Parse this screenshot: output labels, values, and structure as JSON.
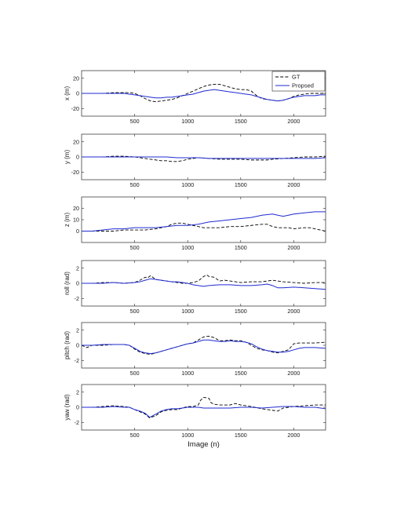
{
  "figure": {
    "background": "#ffffff"
  },
  "chart_data": [
    {
      "type": "line",
      "ylabel": "x (m)",
      "xlabel": "",
      "xlim": [
        0,
        2300
      ],
      "ylim": [
        -30,
        30
      ],
      "xticks": [
        500,
        1000,
        1500,
        2000
      ],
      "yticks": [
        -20,
        0,
        20
      ],
      "grid": false,
      "legend": {
        "position": "top-right",
        "entries": [
          "GT",
          "Propsed"
        ]
      },
      "series": [
        {
          "name": "GT",
          "color": "#000000",
          "style": "dashed",
          "x": [
            0,
            100,
            200,
            300,
            400,
            450,
            500,
            550,
            600,
            650,
            700,
            750,
            800,
            850,
            900,
            950,
            1000,
            1050,
            1100,
            1150,
            1200,
            1250,
            1300,
            1350,
            1400,
            1450,
            1500,
            1550,
            1600,
            1650,
            1700,
            1750,
            1800,
            1850,
            1900,
            1950,
            2000,
            2050,
            2100,
            2150,
            2200,
            2250,
            2300
          ],
          "y": [
            0,
            0,
            0,
            1,
            1,
            1,
            0,
            -3,
            -7,
            -10,
            -11,
            -10,
            -9,
            -8,
            -6,
            -3,
            0,
            3,
            6,
            9,
            11,
            12,
            12,
            10,
            8,
            6,
            5,
            5,
            3,
            -3,
            -7,
            -8,
            -9,
            -10,
            -9,
            -7,
            -4,
            -2,
            -1,
            0,
            0,
            0,
            0
          ]
        },
        {
          "name": "Propsed",
          "color": "#1f2bd0",
          "style": "solid",
          "x": [
            0,
            100,
            200,
            300,
            400,
            450,
            500,
            550,
            600,
            650,
            700,
            750,
            800,
            850,
            900,
            950,
            1000,
            1050,
            1100,
            1150,
            1200,
            1250,
            1300,
            1350,
            1400,
            1450,
            1500,
            1550,
            1600,
            1650,
            1700,
            1750,
            1800,
            1850,
            1900,
            1950,
            2000,
            2050,
            2100,
            2150,
            2200,
            2250,
            2300
          ],
          "y": [
            0,
            0,
            0,
            0,
            0,
            -1,
            -2,
            -3,
            -4,
            -5,
            -6,
            -6,
            -5,
            -5,
            -4,
            -3,
            -2,
            -1,
            1,
            3,
            4,
            5,
            4,
            3,
            2,
            1,
            0,
            -1,
            -2,
            -4,
            -6,
            -8,
            -9,
            -10,
            -9,
            -7,
            -5,
            -4,
            -3,
            -3,
            -3,
            -2,
            -2
          ]
        }
      ]
    },
    {
      "type": "line",
      "ylabel": "y (m)",
      "xlabel": "",
      "xlim": [
        0,
        2300
      ],
      "ylim": [
        -30,
        30
      ],
      "xticks": [
        500,
        1000,
        1500,
        2000
      ],
      "yticks": [
        -20,
        0,
        20
      ],
      "grid": false,
      "series": [
        {
          "name": "GT",
          "color": "#000000",
          "style": "dashed",
          "x": [
            0,
            100,
            200,
            300,
            400,
            500,
            550,
            600,
            650,
            700,
            750,
            800,
            850,
            900,
            950,
            1000,
            1050,
            1100,
            1200,
            1300,
            1400,
            1500,
            1600,
            1650,
            1700,
            1750,
            1800,
            1900,
            2000,
            2100,
            2200,
            2300
          ],
          "y": [
            0,
            0,
            0,
            1,
            1,
            0,
            -1,
            -2,
            -3,
            -4,
            -5,
            -5,
            -6,
            -6,
            -5,
            -3,
            -2,
            -1,
            -2,
            -3,
            -3,
            -3,
            -4,
            -4,
            -4,
            -4,
            -3,
            -2,
            -1,
            0,
            0,
            1
          ]
        },
        {
          "name": "Propsed",
          "color": "#1f2bd0",
          "style": "solid",
          "x": [
            0,
            100,
            200,
            300,
            400,
            500,
            600,
            700,
            800,
            900,
            1000,
            1100,
            1200,
            1300,
            1400,
            1500,
            1600,
            1700,
            1800,
            1900,
            2000,
            2100,
            2200,
            2300
          ],
          "y": [
            0,
            0,
            0,
            0,
            0,
            0,
            0,
            0,
            0,
            -1,
            -1,
            -1,
            -2,
            -2,
            -2,
            -2,
            -2,
            -2,
            -2,
            -2,
            -2,
            -2,
            -2,
            -1
          ]
        }
      ]
    },
    {
      "type": "line",
      "ylabel": "z (m)",
      "xlabel": "",
      "xlim": [
        0,
        2300
      ],
      "ylim": [
        -10,
        30
      ],
      "xticks": [
        500,
        1000,
        1500,
        2000
      ],
      "yticks": [
        0,
        10,
        20
      ],
      "grid": false,
      "series": [
        {
          "name": "GT",
          "color": "#000000",
          "style": "dashed",
          "x": [
            0,
            100,
            200,
            300,
            400,
            500,
            600,
            700,
            750,
            800,
            850,
            900,
            950,
            1000,
            1050,
            1100,
            1150,
            1200,
            1300,
            1400,
            1500,
            1600,
            1700,
            1750,
            1800,
            1850,
            1900,
            1950,
            2000,
            2100,
            2150,
            2200,
            2250,
            2300
          ],
          "y": [
            0,
            0,
            0,
            0,
            1,
            1,
            1,
            2,
            3,
            4,
            6,
            7,
            7,
            6,
            5,
            4,
            3,
            3,
            3,
            4,
            4,
            5,
            6,
            6,
            4,
            3,
            3,
            3,
            2,
            3,
            3,
            2,
            1,
            0
          ]
        },
        {
          "name": "Propsed",
          "color": "#1f2bd0",
          "style": "solid",
          "x": [
            0,
            100,
            200,
            300,
            400,
            500,
            600,
            700,
            800,
            900,
            1000,
            1100,
            1200,
            1300,
            1400,
            1500,
            1600,
            1700,
            1800,
            1850,
            1900,
            1950,
            2000,
            2100,
            2200,
            2300
          ],
          "y": [
            0,
            0,
            1,
            2,
            2,
            3,
            3,
            3,
            4,
            5,
            5,
            6,
            8,
            9,
            10,
            11,
            12,
            14,
            15,
            14,
            13,
            14,
            15,
            16,
            17,
            17
          ]
        }
      ]
    },
    {
      "type": "line",
      "ylabel": "roll (rad)",
      "xlabel": "",
      "xlim": [
        0,
        2300
      ],
      "ylim": [
        -3,
        3
      ],
      "xticks": [
        500,
        1000,
        1500,
        2000
      ],
      "yticks": [
        -2,
        0,
        2
      ],
      "grid": false,
      "series": [
        {
          "name": "GT",
          "color": "#000000",
          "style": "dashed",
          "x": [
            0,
            100,
            200,
            300,
            400,
            500,
            550,
            600,
            620,
            650,
            680,
            700,
            750,
            800,
            850,
            900,
            950,
            1000,
            1050,
            1100,
            1150,
            1180,
            1200,
            1250,
            1300,
            1350,
            1400,
            1500,
            1600,
            1700,
            1750,
            1800,
            1900,
            2000,
            2100,
            2200,
            2300
          ],
          "y": [
            0,
            0,
            0.1,
            0.1,
            0,
            0.1,
            0.4,
            0.8,
            0.7,
            1.0,
            0.7,
            0.5,
            0.4,
            0.3,
            0.2,
            0.1,
            0,
            0,
            0.1,
            0.3,
            0.9,
            1.1,
            0.9,
            0.8,
            0.3,
            0.4,
            0.3,
            0.1,
            0.2,
            0.2,
            0.3,
            0.4,
            0.2,
            0.1,
            0,
            0.1,
            0.1
          ]
        },
        {
          "name": "Propsed",
          "color": "#1f2bd0",
          "style": "solid",
          "x": [
            0,
            100,
            200,
            300,
            400,
            500,
            550,
            600,
            650,
            700,
            750,
            800,
            850,
            900,
            950,
            1000,
            1050,
            1100,
            1150,
            1200,
            1300,
            1400,
            1500,
            1600,
            1700,
            1750,
            1800,
            1850,
            1900,
            2000,
            2100,
            2200,
            2300
          ],
          "y": [
            0,
            0,
            0,
            0.1,
            0,
            0.1,
            0.2,
            0.4,
            0.6,
            0.5,
            0.4,
            0.3,
            0.2,
            0.2,
            0.1,
            0,
            -0.2,
            -0.3,
            -0.4,
            -0.3,
            -0.2,
            -0.2,
            -0.3,
            -0.3,
            -0.2,
            -0.1,
            -0.3,
            -0.6,
            -0.6,
            -0.5,
            -0.6,
            -0.7,
            -0.8
          ]
        }
      ]
    },
    {
      "type": "line",
      "ylabel": "pitch (rad)",
      "xlabel": "",
      "xlim": [
        0,
        2300
      ],
      "ylim": [
        -3,
        3
      ],
      "xticks": [
        500,
        1000,
        1500,
        2000
      ],
      "yticks": [
        -2,
        0,
        2
      ],
      "grid": false,
      "series": [
        {
          "name": "GT",
          "color": "#000000",
          "style": "dashed",
          "x": [
            0,
            50,
            100,
            200,
            300,
            400,
            450,
            500,
            550,
            600,
            650,
            700,
            750,
            800,
            850,
            900,
            950,
            1000,
            1050,
            1100,
            1150,
            1200,
            1250,
            1300,
            1350,
            1400,
            1450,
            1500,
            1550,
            1600,
            1650,
            1700,
            1750,
            1800,
            1850,
            1900,
            1950,
            2000,
            2050,
            2100,
            2200,
            2300
          ],
          "y": [
            0,
            -0.3,
            0,
            0,
            0.1,
            0.1,
            0,
            -0.5,
            -0.9,
            -1.1,
            -1.2,
            -1.0,
            -0.8,
            -0.6,
            -0.4,
            -0.2,
            0,
            0.2,
            0.3,
            0.7,
            1.1,
            1.2,
            1.0,
            0.6,
            0.6,
            0.7,
            0.6,
            0.6,
            0.4,
            0,
            -0.4,
            -0.6,
            -0.7,
            -0.9,
            -1.0,
            -0.8,
            -0.6,
            0.2,
            0.3,
            0.3,
            0.3,
            0.4
          ]
        },
        {
          "name": "Propsed",
          "color": "#1f2bd0",
          "style": "solid",
          "x": [
            0,
            100,
            200,
            300,
            400,
            450,
            500,
            550,
            600,
            650,
            700,
            750,
            800,
            850,
            900,
            950,
            1000,
            1050,
            1100,
            1150,
            1200,
            1250,
            1300,
            1350,
            1400,
            1450,
            1500,
            1550,
            1600,
            1650,
            1700,
            1750,
            1800,
            1850,
            1900,
            1950,
            2000,
            2050,
            2100,
            2200,
            2300
          ],
          "y": [
            0,
            0,
            0.1,
            0.1,
            0.1,
            0,
            -0.4,
            -0.8,
            -1.0,
            -1.1,
            -1.0,
            -0.8,
            -0.6,
            -0.4,
            -0.2,
            0,
            0.2,
            0.3,
            0.5,
            0.7,
            0.7,
            0.6,
            0.5,
            0.5,
            0.6,
            0.5,
            0.5,
            0.4,
            0.2,
            -0.2,
            -0.5,
            -0.7,
            -0.8,
            -0.9,
            -0.9,
            -0.8,
            -0.6,
            -0.4,
            -0.3,
            -0.3,
            -0.4
          ]
        }
      ]
    },
    {
      "type": "line",
      "ylabel": "yaw (rad)",
      "xlabel": "Image (n)",
      "xlim": [
        0,
        2300
      ],
      "ylim": [
        -3,
        3
      ],
      "xticks": [
        500,
        1000,
        1500,
        2000
      ],
      "yticks": [
        -2,
        0,
        2
      ],
      "grid": false,
      "series": [
        {
          "name": "GT",
          "color": "#000000",
          "style": "dashed",
          "x": [
            0,
            100,
            200,
            300,
            400,
            450,
            500,
            550,
            600,
            640,
            660,
            700,
            750,
            800,
            850,
            900,
            950,
            1000,
            1050,
            1100,
            1120,
            1150,
            1200,
            1220,
            1250,
            1300,
            1400,
            1450,
            1500,
            1550,
            1600,
            1700,
            1800,
            1850,
            1900,
            1950,
            2000,
            2100,
            2200,
            2300
          ],
          "y": [
            0,
            0,
            0.1,
            0.2,
            0.1,
            0,
            -0.3,
            -0.6,
            -0.9,
            -1.4,
            -1.3,
            -1.1,
            -0.6,
            -0.4,
            -0.3,
            -0.3,
            -0.1,
            0.1,
            0.1,
            0.3,
            0.9,
            1.3,
            1.2,
            0.6,
            0.4,
            0.3,
            0.3,
            0.5,
            0.3,
            0.2,
            0.1,
            -0.2,
            -0.4,
            -0.5,
            -0.1,
            0,
            0.1,
            0.2,
            0.3,
            0.3
          ]
        },
        {
          "name": "Propsed",
          "color": "#1f2bd0",
          "style": "solid",
          "x": [
            0,
            100,
            200,
            300,
            400,
            450,
            500,
            550,
            600,
            640,
            660,
            700,
            750,
            800,
            850,
            900,
            950,
            1000,
            1050,
            1100,
            1150,
            1200,
            1300,
            1400,
            1500,
            1600,
            1700,
            1800,
            1900,
            2000,
            2100,
            2200,
            2300
          ],
          "y": [
            0,
            0,
            0,
            0.1,
            0,
            0,
            -0.3,
            -0.5,
            -0.8,
            -1.3,
            -1.2,
            -0.9,
            -0.5,
            -0.3,
            -0.2,
            -0.2,
            -0.1,
            0,
            0,
            0,
            -0.1,
            -0.1,
            -0.1,
            -0.1,
            0,
            0,
            -0.1,
            0,
            0.1,
            0.1,
            0,
            0,
            -0.2
          ]
        }
      ]
    }
  ]
}
